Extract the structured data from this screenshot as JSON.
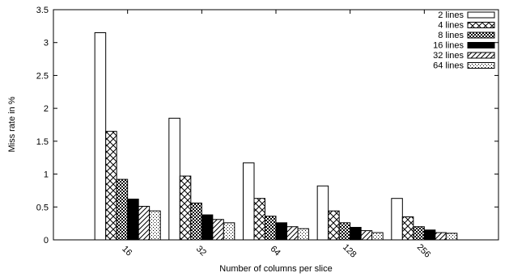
{
  "chart_data": {
    "type": "bar",
    "xlabel": "Number of columns per slice",
    "ylabel": "Miss rate in %",
    "categories": [
      "16",
      "32",
      "64",
      "128",
      "256"
    ],
    "ylim": [
      0,
      3.5
    ],
    "yticks": [
      "0",
      "0.5",
      "1",
      "1.5",
      "2",
      "2.5",
      "3",
      "3.5"
    ],
    "grid": false,
    "legend_position": "top-right",
    "series": [
      {
        "name": "2 lines",
        "pattern": "white",
        "values": [
          3.15,
          1.85,
          1.17,
          0.82,
          0.63
        ]
      },
      {
        "name": "4 lines",
        "pattern": "crosshatch",
        "values": [
          1.65,
          0.97,
          0.63,
          0.44,
          0.35
        ]
      },
      {
        "name": "8 lines",
        "pattern": "checker",
        "values": [
          0.92,
          0.56,
          0.36,
          0.26,
          0.2
        ]
      },
      {
        "name": "16 lines",
        "pattern": "black",
        "values": [
          0.62,
          0.38,
          0.26,
          0.19,
          0.15
        ]
      },
      {
        "name": "32 lines",
        "pattern": "diagonal",
        "values": [
          0.51,
          0.31,
          0.2,
          0.14,
          0.11
        ]
      },
      {
        "name": "64 lines",
        "pattern": "dotted",
        "values": [
          0.44,
          0.26,
          0.17,
          0.11,
          0.1
        ]
      }
    ],
    "colors": {
      "axis": "#000000",
      "bar_stroke": "#000000",
      "black_fill": "#000000"
    }
  }
}
